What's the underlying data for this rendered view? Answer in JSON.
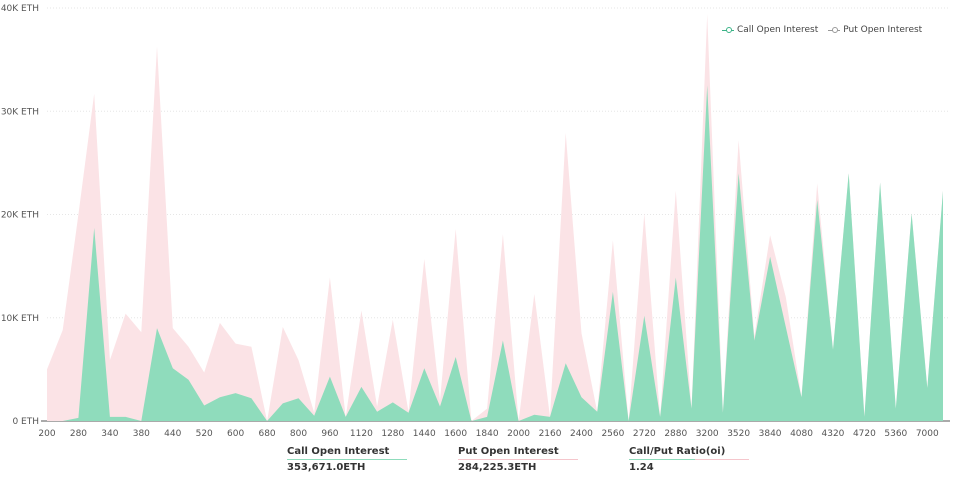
{
  "chart_data": {
    "type": "area",
    "title": "",
    "xlabel": "",
    "ylabel": "",
    "ylim": [
      0,
      40000
    ],
    "y_ticks": [
      "0 ETH",
      "10K ETH",
      "20K ETH",
      "30K ETH",
      "40K ETH"
    ],
    "y_tick_values": [
      0,
      10000,
      20000,
      30000,
      40000
    ],
    "grid": true,
    "legend_position": "top-right",
    "categories": [
      "200",
      "240",
      "280",
      "300",
      "340",
      "360",
      "380",
      "400",
      "440",
      "480",
      "520",
      "560",
      "600",
      "640",
      "680",
      "720",
      "800",
      "880",
      "960",
      "1040",
      "1120",
      "1200",
      "1280",
      "1360",
      "1440",
      "1520",
      "1600",
      "1760",
      "1840",
      "1920",
      "2000",
      "2080",
      "2160",
      "2240",
      "2400",
      "2480",
      "2560",
      "2640",
      "2720",
      "2800",
      "2880",
      "3000",
      "3200",
      "3400",
      "3520",
      "3600",
      "3840",
      "4000",
      "4080",
      "4160",
      "4320",
      "4480",
      "4720",
      "5000",
      "5360",
      "6000",
      "7000",
      "8000"
    ],
    "x_tick_labels": [
      "200",
      "280",
      "340",
      "380",
      "440",
      "520",
      "600",
      "680",
      "800",
      "960",
      "1120",
      "1280",
      "1440",
      "1600",
      "1840",
      "2000",
      "2160",
      "2400",
      "2560",
      "2720",
      "2880",
      "3200",
      "3520",
      "3840",
      "4080",
      "4320",
      "4720",
      "5360",
      "7000"
    ],
    "series": [
      {
        "name": "Put  Open Interest",
        "color": "#fbe3e6",
        "values": [
          5000,
          8800,
          20000,
          31700,
          5900,
          10400,
          8600,
          36300,
          9000,
          7200,
          4700,
          9500,
          7500,
          7200,
          0,
          9100,
          5900,
          800,
          13900,
          400,
          10700,
          1400,
          9800,
          900,
          15700,
          2000,
          18600,
          0,
          1200,
          18100,
          0,
          12300,
          400,
          27900,
          8500,
          900,
          17500,
          0,
          20100,
          400,
          22300,
          1200,
          39400,
          800,
          27200,
          8200,
          18000,
          12000,
          2300,
          23000,
          6900,
          24000,
          400,
          23100,
          1200,
          20100,
          3200,
          22300
        ]
      },
      {
        "name": "Call Open Interest",
        "color": "#8fdcbc",
        "values": [
          0,
          0,
          300,
          18700,
          400,
          400,
          0,
          9000,
          5100,
          4000,
          1500,
          2300,
          2700,
          2200,
          0,
          1700,
          2200,
          500,
          4300,
          400,
          3300,
          900,
          1800,
          800,
          5100,
          1400,
          6200,
          0,
          400,
          7800,
          0,
          600,
          400,
          5600,
          2300,
          900,
          12500,
          0,
          10200,
          400,
          13900,
          1200,
          32500,
          800,
          24000,
          7800,
          15900,
          9100,
          2300,
          21400,
          6900,
          24000,
          400,
          23100,
          1200,
          20100,
          3200,
          22300
        ]
      }
    ]
  },
  "legend": {
    "call_label": "Call Open Interest",
    "put_label": "Put  Open Interest",
    "call_color": "#3bb387",
    "put_color": "#999999"
  },
  "summary": [
    {
      "title": "Call Open Interest",
      "value": "353,671.0ETH",
      "line_color": "#8fdcbc"
    },
    {
      "title": "Put Open Interest",
      "value": "284,225.3ETH",
      "line_color": "#f5c6cc"
    },
    {
      "title": "Call/Put Ratio(oi)",
      "value": "1.24",
      "line_color": "#f5c6cc"
    }
  ]
}
